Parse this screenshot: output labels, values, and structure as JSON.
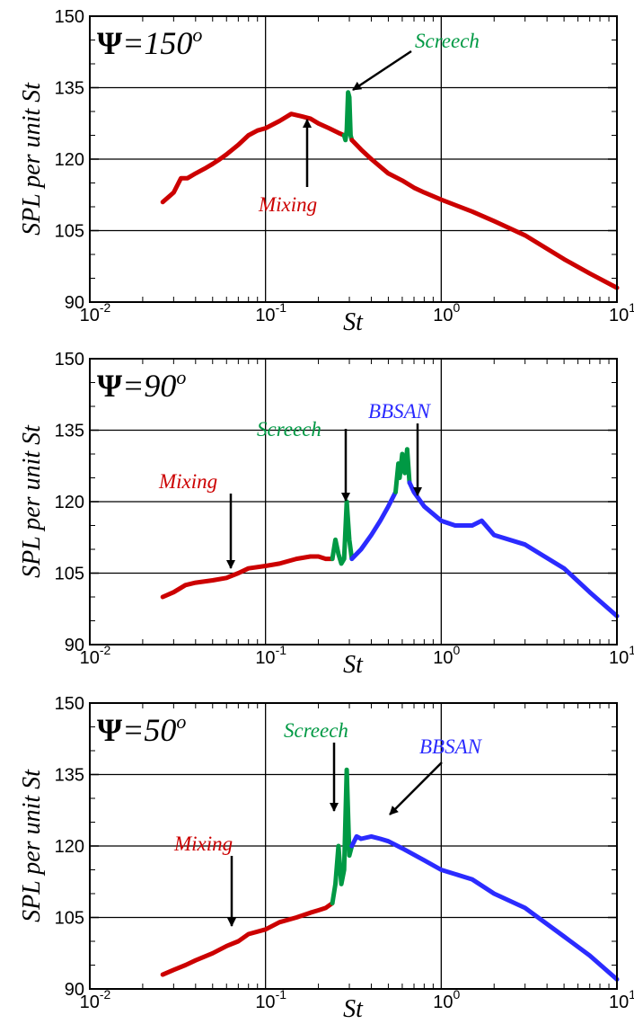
{
  "figure": {
    "xlabel": "St",
    "ylabel": "SPL per unit St"
  },
  "colors": {
    "mixing": "#cc0000",
    "screech": "#009944",
    "bbsan": "#2b2bff",
    "grid": "#000000"
  },
  "chart_data": [
    {
      "type": "line",
      "label_symbol": "Ψ",
      "label_value": "=150",
      "label_sup": "o",
      "xlabel": "St",
      "ylabel": "SPL per unit St",
      "xscale": "log",
      "xlim": [
        0.01,
        10
      ],
      "ylim": [
        90,
        150
      ],
      "x_ticks": [
        {
          "base": "10",
          "exp": "-2"
        },
        {
          "base": "10",
          "exp": "-1"
        },
        {
          "base": "10",
          "exp": "0"
        },
        {
          "base": "10",
          "exp": "1"
        }
      ],
      "y_ticks": [
        "90",
        "105",
        "120",
        "135",
        "150"
      ],
      "grid": true,
      "series": [
        {
          "role": "mixing",
          "x": [
            0.026,
            0.03,
            0.033,
            0.036,
            0.04,
            0.045,
            0.05,
            0.055,
            0.06,
            0.07,
            0.08,
            0.09,
            0.1,
            0.12,
            0.14,
            0.16,
            0.18,
            0.2,
            0.23,
            0.26,
            0.28
          ],
          "y": [
            111,
            113,
            116,
            116,
            117,
            118,
            119,
            120,
            121,
            123,
            125,
            126,
            126.5,
            128,
            129.5,
            129,
            128.5,
            127.5,
            126.5,
            125.5,
            125
          ]
        },
        {
          "role": "screech",
          "x": [
            0.28,
            0.285,
            0.29,
            0.295,
            0.3,
            0.305,
            0.31
          ],
          "y": [
            125,
            124,
            126,
            134,
            133,
            125,
            124
          ]
        },
        {
          "role": "mixing",
          "x": [
            0.31,
            0.35,
            0.4,
            0.5,
            0.6,
            0.7,
            0.8,
            1,
            1.5,
            2,
            3,
            5,
            7,
            10
          ],
          "y": [
            124,
            122,
            120,
            117,
            115.5,
            114,
            113,
            111.5,
            109,
            107,
            104,
            99,
            96,
            93
          ]
        }
      ],
      "annotations": [
        {
          "text": "Screech",
          "role": "screech"
        },
        {
          "text": "Mixing",
          "role": "mixing"
        }
      ]
    },
    {
      "type": "line",
      "label_symbol": "Ψ",
      "label_value": "=90",
      "label_sup": "o",
      "xlabel": "St",
      "ylabel": "SPL per unit St",
      "xscale": "log",
      "xlim": [
        0.01,
        10
      ],
      "ylim": [
        90,
        150
      ],
      "x_ticks": [
        {
          "base": "10",
          "exp": "-2"
        },
        {
          "base": "10",
          "exp": "-1"
        },
        {
          "base": "10",
          "exp": "0"
        },
        {
          "base": "10",
          "exp": "1"
        }
      ],
      "y_ticks": [
        "90",
        "105",
        "120",
        "135",
        "150"
      ],
      "grid": true,
      "series": [
        {
          "role": "mixing",
          "x": [
            0.026,
            0.03,
            0.035,
            0.04,
            0.05,
            0.06,
            0.07,
            0.08,
            0.1,
            0.12,
            0.15,
            0.18,
            0.2,
            0.22,
            0.24
          ],
          "y": [
            100,
            101,
            102.5,
            103,
            103.5,
            104,
            105,
            106,
            106.5,
            107,
            108,
            108.5,
            108.5,
            108,
            108
          ]
        },
        {
          "role": "screech",
          "x": [
            0.24,
            0.25,
            0.26,
            0.27,
            0.28,
            0.29,
            0.3,
            0.31
          ],
          "y": [
            108,
            112,
            109,
            107,
            108,
            120,
            112,
            108
          ]
        },
        {
          "role": "bbsan",
          "x": [
            0.31,
            0.35,
            0.4,
            0.45,
            0.5,
            0.55
          ],
          "y": [
            108,
            110,
            113,
            116,
            119,
            122
          ]
        },
        {
          "role": "screech",
          "x": [
            0.55,
            0.57,
            0.58,
            0.6,
            0.62,
            0.64,
            0.66
          ],
          "y": [
            122,
            128,
            125,
            130,
            126,
            131,
            124
          ]
        },
        {
          "role": "bbsan",
          "x": [
            0.66,
            0.7,
            0.8,
            1,
            1.2,
            1.5,
            1.7,
            2,
            3,
            5,
            7,
            10
          ],
          "y": [
            124,
            122,
            119,
            116,
            115,
            115,
            116,
            113,
            111,
            106,
            101,
            96
          ]
        }
      ],
      "annotations": [
        {
          "text": "Screech",
          "role": "screech"
        },
        {
          "text": "BBSAN",
          "role": "bbsan"
        },
        {
          "text": "Mixing",
          "role": "mixing"
        }
      ]
    },
    {
      "type": "line",
      "label_symbol": "Ψ",
      "label_value": "=50",
      "label_sup": "o",
      "xlabel": "St",
      "ylabel": "SPL per unit St",
      "xscale": "log",
      "xlim": [
        0.01,
        10
      ],
      "ylim": [
        90,
        150
      ],
      "x_ticks": [
        {
          "base": "10",
          "exp": "-2"
        },
        {
          "base": "10",
          "exp": "-1"
        },
        {
          "base": "10",
          "exp": "0"
        },
        {
          "base": "10",
          "exp": "1"
        }
      ],
      "y_ticks": [
        "90",
        "105",
        "120",
        "135",
        "150"
      ],
      "grid": true,
      "series": [
        {
          "role": "mixing",
          "x": [
            0.026,
            0.03,
            0.035,
            0.04,
            0.05,
            0.06,
            0.07,
            0.08,
            0.1,
            0.12,
            0.15,
            0.18,
            0.2,
            0.22,
            0.24
          ],
          "y": [
            93,
            94,
            95,
            96,
            97.5,
            99,
            100,
            101.5,
            102.5,
            104,
            105,
            106,
            106.5,
            107,
            108
          ]
        },
        {
          "role": "screech",
          "x": [
            0.24,
            0.25,
            0.26,
            0.27,
            0.28,
            0.29,
            0.3,
            0.31
          ],
          "y": [
            108,
            112,
            120,
            112,
            115,
            136,
            118,
            120
          ]
        },
        {
          "role": "bbsan",
          "x": [
            0.31,
            0.33,
            0.35,
            0.4,
            0.45,
            0.5,
            0.6,
            0.8,
            1,
            1.5,
            2,
            3,
            5,
            7,
            10
          ],
          "y": [
            120,
            122,
            121.5,
            122,
            121.5,
            121,
            119.5,
            117,
            115,
            113,
            110,
            107,
            101,
            97,
            92
          ]
        }
      ],
      "annotations": [
        {
          "text": "Screech",
          "role": "screech"
        },
        {
          "text": "BBSAN",
          "role": "bbsan"
        },
        {
          "text": "Mixing",
          "role": "mixing"
        }
      ]
    }
  ]
}
